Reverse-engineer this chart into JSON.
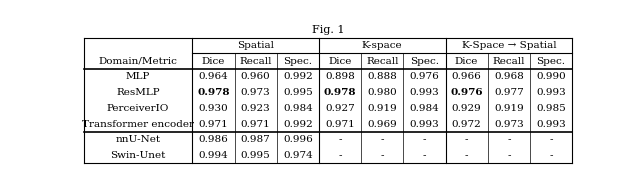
{
  "title": "Fig. 1",
  "col_groups": [
    "Spatial",
    "K-space",
    "K-Space → Spatial"
  ],
  "sub_cols": [
    "Dice",
    "Recall",
    "Spec."
  ],
  "row_header": "Domain/Metric",
  "rows": [
    {
      "name": "MLP",
      "vals": [
        "0.964",
        "0.960",
        "0.992",
        "0.898",
        "0.888",
        "0.976",
        "0.966",
        "0.968",
        "0.990"
      ],
      "bold": []
    },
    {
      "name": "ResMLP",
      "vals": [
        "0.978",
        "0.973",
        "0.995",
        "0.978",
        "0.980",
        "0.993",
        "0.976",
        "0.977",
        "0.993"
      ],
      "bold": [
        0,
        3,
        6
      ]
    },
    {
      "name": "PerceiverIO",
      "vals": [
        "0.930",
        "0.923",
        "0.984",
        "0.927",
        "0.919",
        "0.984",
        "0.929",
        "0.919",
        "0.985"
      ],
      "bold": []
    },
    {
      "name": "Transformer encoder",
      "vals": [
        "0.971",
        "0.971",
        "0.992",
        "0.971",
        "0.969",
        "0.993",
        "0.972",
        "0.973",
        "0.993"
      ],
      "bold": []
    }
  ],
  "rows2": [
    {
      "name": "nnU-Net",
      "vals": [
        "0.986",
        "0.987",
        "0.996",
        "-",
        "-",
        "-",
        "-",
        "-",
        "-"
      ],
      "bold": []
    },
    {
      "name": "Swin-Unet",
      "vals": [
        "0.994",
        "0.995",
        "0.974",
        "-",
        "-",
        "-",
        "-",
        "-",
        "-"
      ],
      "bold": []
    }
  ],
  "line_color": "#000000",
  "font_size": 7.5,
  "title_font_size": 8.0
}
